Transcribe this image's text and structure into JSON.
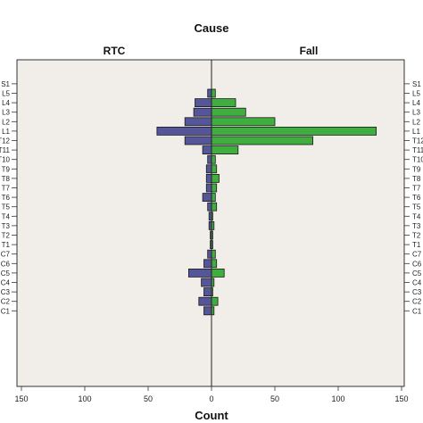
{
  "chart_data": {
    "type": "bar",
    "orientation": "horizontal",
    "title": "Cause",
    "xlabel": "Count",
    "ylabel": "",
    "panels": [
      "RTC",
      "Fall"
    ],
    "categories": [
      "S1",
      "L5",
      "L4",
      "L3",
      "L2",
      "L1",
      "T12",
      "T11",
      "T10",
      "T9",
      "T8",
      "T7",
      "T6",
      "T5",
      "T4",
      "T3",
      "T2",
      "T1",
      "C7",
      "C6",
      "C5",
      "C4",
      "C3",
      "C2",
      "C1"
    ],
    "series": [
      {
        "name": "RTC",
        "side": "left",
        "values": [
          0,
          3,
          13,
          14,
          21,
          43,
          21,
          7,
          3,
          4,
          4,
          4,
          7,
          3,
          2,
          2,
          1,
          1,
          3,
          6,
          18,
          8,
          6,
          10,
          6
        ]
      },
      {
        "name": "Fall",
        "side": "right",
        "values": [
          0,
          3,
          19,
          27,
          50,
          130,
          80,
          21,
          3,
          4,
          6,
          4,
          3,
          4,
          1,
          2,
          1,
          1,
          3,
          4,
          10,
          2,
          1,
          5,
          2
        ]
      }
    ],
    "xticks": [
      150,
      100,
      50,
      0,
      50,
      100,
      150
    ],
    "xlim": [
      -150,
      150
    ],
    "grid": false,
    "colors": {
      "RTC": "#55559a",
      "Fall": "#3fae3f",
      "background": "#f1ede8",
      "edge": "#1a1a1a"
    }
  }
}
